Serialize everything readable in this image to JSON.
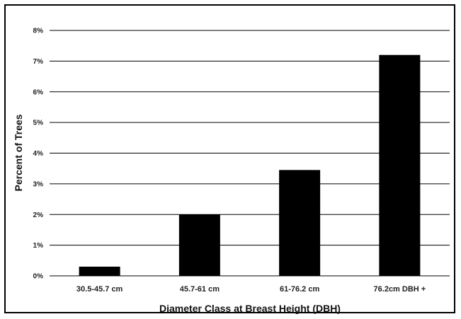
{
  "chart_data": {
    "type": "bar",
    "title": "",
    "xlabel": "Diameter Class at Breast Height (DBH)",
    "ylabel": "Percent of Trees",
    "categories": [
      "30.5-45.7 cm",
      "45.7-61 cm",
      "61-76.2 cm",
      "76.2cm DBH +"
    ],
    "values": [
      0.3,
      2.0,
      3.45,
      7.2
    ],
    "ylim": [
      0,
      8
    ],
    "yticks": [
      0,
      1,
      2,
      3,
      4,
      5,
      6,
      7,
      8
    ],
    "ytick_labels": [
      "0%",
      "1%",
      "2%",
      "3%",
      "4%",
      "5%",
      "6%",
      "7%",
      "8%"
    ],
    "grid": true,
    "legend": "none",
    "bar_color": "#000000",
    "grid_color": "#000000"
  }
}
